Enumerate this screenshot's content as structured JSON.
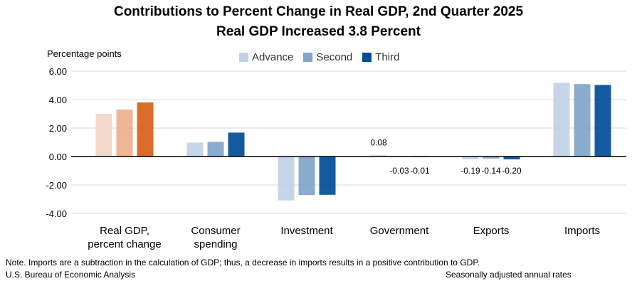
{
  "chart_data": {
    "type": "bar",
    "title": "Contributions to Percent Change in Real GDP, 2nd Quarter 2025",
    "subtitle": "Real GDP Increased 3.8 Percent",
    "ylabel": "Percentage points",
    "ylim": [
      -4,
      6
    ],
    "yticks": [
      "6.00",
      "4.00",
      "2.00",
      "0.00",
      "-2.00",
      "-4.00"
    ],
    "ytick_values": [
      6,
      4,
      2,
      0,
      -2,
      -4
    ],
    "grid": true,
    "legend_position": "top-center",
    "categories": [
      "Real GDP,\npercent change",
      "Consumer\nspending",
      "Investment",
      "Government",
      "Exports",
      "Imports"
    ],
    "series": [
      {
        "name": "Advance",
        "values": [
          3.0,
          0.98,
          -3.08,
          0.08,
          -0.19,
          5.18
        ],
        "color": "#c0d2e6",
        "gdp_color": "#f3d7c5"
      },
      {
        "name": "Second",
        "values": [
          3.3,
          1.03,
          -2.71,
          -0.03,
          -0.14,
          5.09
        ],
        "color": "#7fa5cb",
        "gdp_color": "#ebb08b"
      },
      {
        "name": "Third",
        "values": [
          3.8,
          1.68,
          -2.69,
          -0.01,
          -0.2,
          5.03
        ],
        "color": "#004c97",
        "gdp_color": "#d9601a"
      }
    ],
    "data_labels": {
      "Government": [
        "0.08",
        "-0.03",
        "-0.01"
      ],
      "Exports": [
        "-0.19",
        "-0.14",
        "-0.20"
      ]
    }
  },
  "footer": {
    "note": "Note. Imports are a subtraction in the calculation of GDP; thus, a decrease in imports results in a positive contribution to GDP.",
    "source": "U.S. Bureau of Economic Analysis",
    "basis": "Seasonally adjusted annual rates"
  }
}
